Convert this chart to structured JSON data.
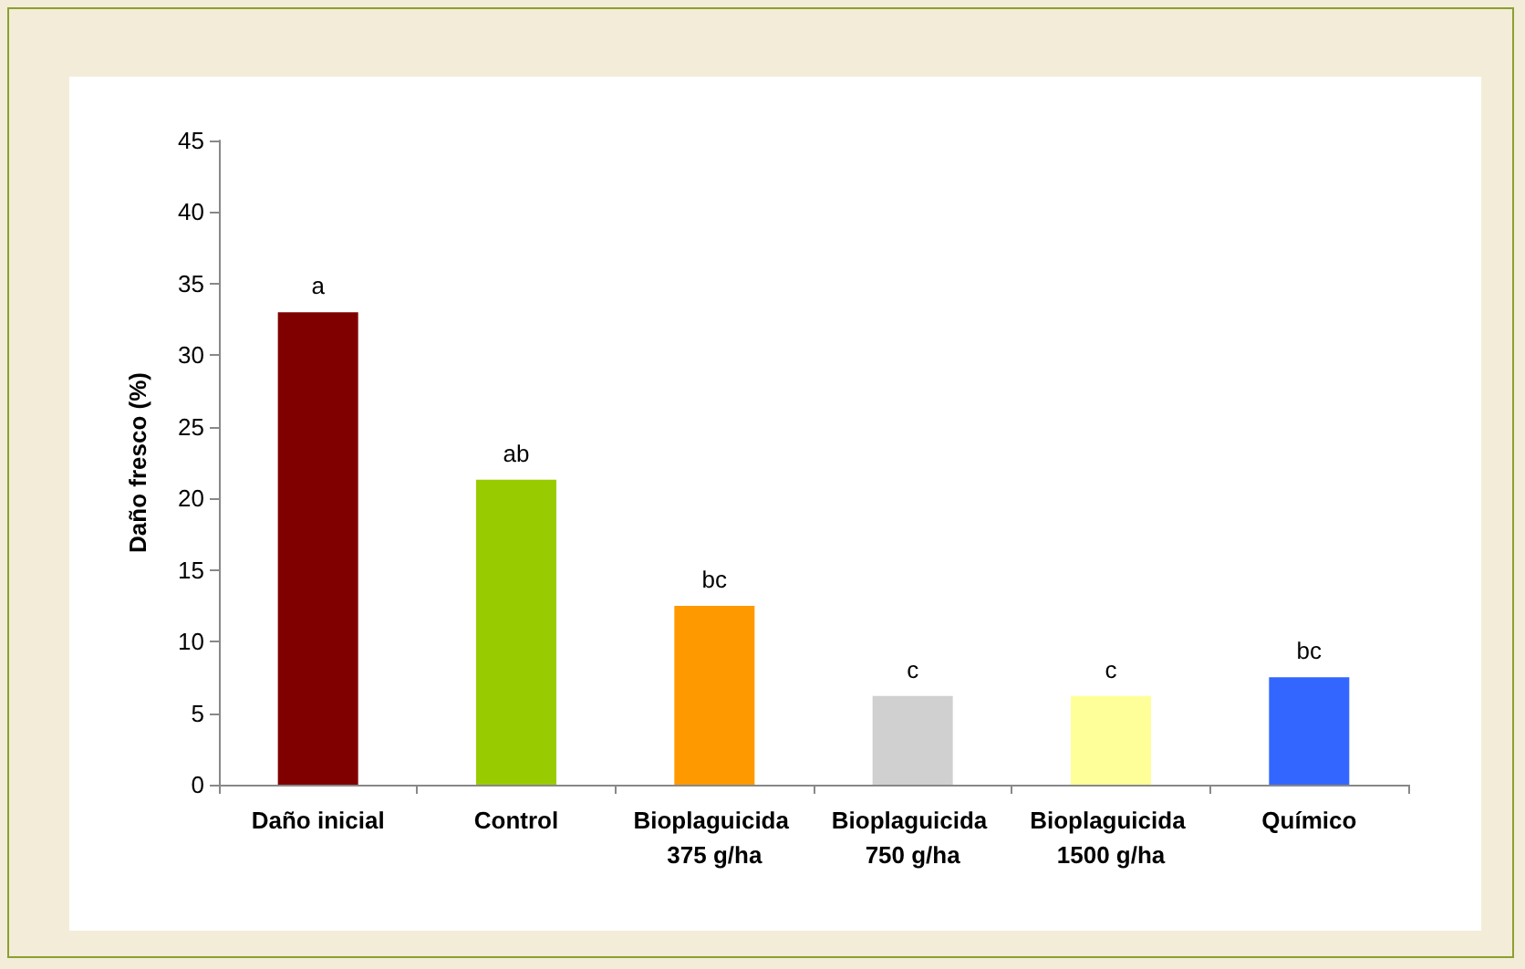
{
  "chart_data": {
    "type": "bar",
    "ylabel": "Daño fresco (%)",
    "categories": [
      "Daño inicial",
      "Control",
      "Bioplaguicida 375 g/ha",
      "Bioplaguicida 750 g/ha",
      "Bioplaguicida 1500 g/ha",
      "Químico"
    ],
    "values": [
      33.0,
      21.3,
      12.5,
      6.2,
      6.2,
      7.5
    ],
    "colors": [
      "#800000",
      "#99cc00",
      "#ff9900",
      "#d0d0d0",
      "#ffff99",
      "#3366ff"
    ],
    "ylim": [
      0,
      45
    ],
    "yticks": [
      0,
      5,
      10,
      15,
      20,
      25,
      30,
      35,
      40,
      45
    ],
    "grid": false,
    "annotations": [
      {
        "text": "a",
        "x": "Daño inicial",
        "y": 33.0
      },
      {
        "text": "ab",
        "x": "Control",
        "y": 21.3
      },
      {
        "text": "bc",
        "x": "Bioplaguicida 375 g/ha",
        "y": 12.5
      },
      {
        "text": "c",
        "x": "Bioplaguicida 750 g/ha",
        "y": 6.2
      },
      {
        "text": "c",
        "x": "Bioplaguicida 1500 g/ha",
        "y": 6.2
      },
      {
        "text": "bc",
        "x": "Químico",
        "y": 7.5
      }
    ]
  }
}
